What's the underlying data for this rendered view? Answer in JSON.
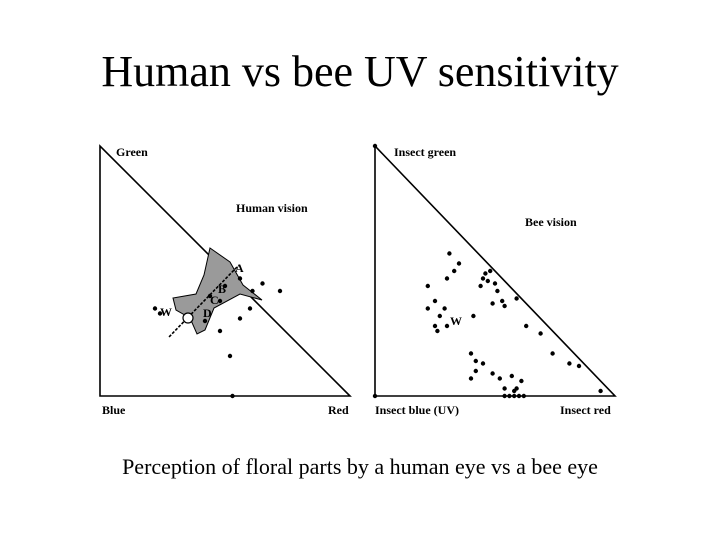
{
  "slide": {
    "title": "Human vs bee UV sensitivity",
    "caption": "Perception of floral parts by a human eye vs a bee eye"
  },
  "human_panel": {
    "title": "Human vision",
    "corner_labels": {
      "top": "Green",
      "bottom_left": "Blue",
      "bottom_right": "Red"
    },
    "point_labels": [
      "A",
      "B",
      "C",
      "D",
      "W"
    ],
    "points": [
      [
        0.42,
        0.3
      ],
      [
        0.48,
        0.26
      ],
      [
        0.56,
        0.31
      ],
      [
        0.48,
        0.38
      ],
      [
        0.6,
        0.35
      ],
      [
        0.44,
        0.4
      ],
      [
        0.5,
        0.44
      ],
      [
        0.65,
        0.45
      ],
      [
        0.72,
        0.42
      ],
      [
        0.52,
        0.16
      ],
      [
        0.22,
        0.35
      ],
      [
        0.24,
        0.33
      ],
      [
        0.61,
        0.42
      ],
      [
        0.56,
        0.47
      ],
      [
        0.53,
        0.0
      ]
    ]
  },
  "bee_panel": {
    "title": "Bee vision",
    "corner_labels": {
      "top": "Insect green",
      "bottom_left": "Insect blue (UV)",
      "bottom_right": "Insect red"
    },
    "point_labels": [
      "W"
    ],
    "points": [
      [
        0.35,
        0.53
      ],
      [
        0.31,
        0.57
      ],
      [
        0.33,
        0.5
      ],
      [
        0.3,
        0.47
      ],
      [
        0.22,
        0.44
      ],
      [
        0.25,
        0.38
      ],
      [
        0.45,
        0.47
      ],
      [
        0.47,
        0.46
      ],
      [
        0.46,
        0.49
      ],
      [
        0.48,
        0.5
      ],
      [
        0.5,
        0.45
      ],
      [
        0.44,
        0.44
      ],
      [
        0.51,
        0.42
      ],
      [
        0.53,
        0.38
      ],
      [
        0.49,
        0.37
      ],
      [
        0.54,
        0.36
      ],
      [
        0.59,
        0.39
      ],
      [
        0.22,
        0.35
      ],
      [
        0.27,
        0.32
      ],
      [
        0.3,
        0.28
      ],
      [
        0.25,
        0.28
      ],
      [
        0.29,
        0.35
      ],
      [
        0.26,
        0.26
      ],
      [
        0.41,
        0.32
      ],
      [
        0.42,
        0.14
      ],
      [
        0.4,
        0.17
      ],
      [
        0.42,
        0.1
      ],
      [
        0.4,
        0.07
      ],
      [
        0.45,
        0.13
      ],
      [
        0.49,
        0.09
      ],
      [
        0.52,
        0.07
      ],
      [
        0.57,
        0.08
      ],
      [
        0.61,
        0.06
      ],
      [
        0.54,
        0.03
      ],
      [
        0.58,
        0.02
      ],
      [
        0.59,
        0.03
      ],
      [
        0.69,
        0.25
      ],
      [
        0.74,
        0.17
      ],
      [
        0.81,
        0.13
      ],
      [
        0.85,
        0.12
      ],
      [
        0.63,
        0.28
      ],
      [
        0.54,
        0.0
      ],
      [
        0.56,
        0.0
      ],
      [
        0.58,
        0.0
      ],
      [
        0.6,
        0.0
      ],
      [
        0.62,
        0.0
      ],
      [
        0.94,
        0.02
      ],
      [
        0.0,
        1.0
      ],
      [
        0.0,
        0.0
      ]
    ]
  }
}
